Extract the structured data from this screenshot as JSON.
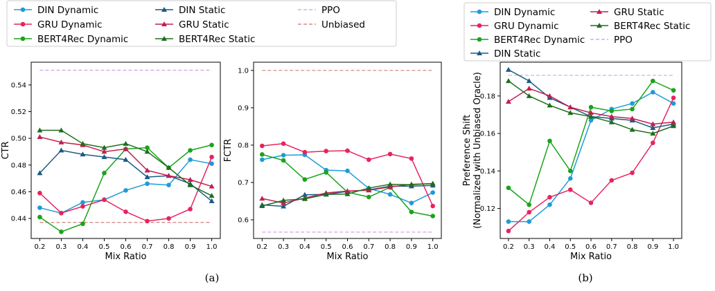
{
  "colors": {
    "din": "#1f9bd7",
    "gru": "#e6245d",
    "bert": "#1aa31a",
    "din_static": "#1a5a82",
    "gru_static": "#c21e4e",
    "bert_static": "#1c6e1c",
    "ppo": "#c79ae6",
    "unbiased": "#c9706e"
  },
  "legend_a": [
    {
      "label": "DIN Dynamic",
      "key": "din",
      "style": "dyn"
    },
    {
      "label": "GRU Dynamic",
      "key": "gru",
      "style": "dyn"
    },
    {
      "label": "BERT4Rec Dynamic",
      "key": "bert",
      "style": "dyn"
    },
    {
      "label": "DIN Static",
      "key": "din_static",
      "style": "stat"
    },
    {
      "label": "GRU Static",
      "key": "gru_static",
      "style": "stat"
    },
    {
      "label": "BERT4Rec Static",
      "key": "bert_static",
      "style": "stat"
    },
    {
      "label": "PPO",
      "key": "ppo",
      "style": "dash"
    },
    {
      "label": "Unbiased",
      "key": "unbiased",
      "style": "dash"
    }
  ],
  "legend_b": [
    {
      "label": "DIN Dynamic",
      "key": "din",
      "style": "dyn"
    },
    {
      "label": "GRU Dynamic",
      "key": "gru",
      "style": "dyn"
    },
    {
      "label": "BERT4Rec Dynamic",
      "key": "bert",
      "style": "dyn"
    },
    {
      "label": "DIN Static",
      "key": "din_static",
      "style": "stat"
    },
    {
      "label": "GRU Static",
      "key": "gru_static",
      "style": "stat"
    },
    {
      "label": "BERT4Rec Static",
      "key": "bert_static",
      "style": "stat"
    },
    {
      "label": "PPO",
      "key": "ppo",
      "style": "dash"
    }
  ],
  "captions": {
    "a": "(a)",
    "b": "(b)"
  },
  "chart_data": [
    {
      "type": "line",
      "xlabel": "Mix Ratio",
      "ylabel": "CTR",
      "x": [
        0.2,
        0.3,
        0.4,
        0.5,
        0.6,
        0.7,
        0.8,
        0.9,
        1.0
      ],
      "xticks": [
        "0.2",
        "0.3",
        "0.4",
        "0.5",
        "0.6",
        "0.7",
        "0.8",
        "0.9",
        "1.0"
      ],
      "ylim": [
        0.425,
        0.557
      ],
      "yticks": [
        "0.44",
        "0.46",
        "0.48",
        "0.50",
        "0.52",
        "0.54"
      ],
      "yticks_values": [
        0.44,
        0.46,
        0.48,
        0.5,
        0.52,
        0.54
      ],
      "series": [
        {
          "name": "DIN Dynamic",
          "key": "din",
          "style": "dyn",
          "values": [
            0.448,
            0.444,
            0.452,
            0.454,
            0.461,
            0.466,
            0.465,
            0.484,
            0.481
          ]
        },
        {
          "name": "GRU Dynamic",
          "key": "gru",
          "style": "dyn",
          "values": [
            0.459,
            0.444,
            0.449,
            0.454,
            0.445,
            0.438,
            0.44,
            0.447,
            0.486
          ]
        },
        {
          "name": "BERT4Rec Dynamic",
          "key": "bert",
          "style": "dyn",
          "values": [
            0.441,
            0.43,
            0.436,
            0.474,
            0.492,
            0.493,
            0.478,
            0.491,
            0.495
          ]
        },
        {
          "name": "DIN Static",
          "key": "din_static",
          "style": "stat",
          "values": [
            0.474,
            0.491,
            0.488,
            0.486,
            0.484,
            0.471,
            0.472,
            0.466,
            0.453
          ]
        },
        {
          "name": "GRU Static",
          "key": "gru_static",
          "style": "stat",
          "values": [
            0.501,
            0.497,
            0.495,
            0.49,
            0.492,
            0.476,
            0.472,
            0.469,
            0.464
          ]
        },
        {
          "name": "BERT4Rec Static",
          "key": "bert_static",
          "style": "stat",
          "values": [
            0.506,
            0.506,
            0.496,
            0.493,
            0.496,
            0.49,
            0.478,
            0.465,
            0.457
          ]
        },
        {
          "name": "PPO",
          "key": "ppo",
          "style": "dash",
          "values": [
            0.551,
            0.551,
            0.551,
            0.551,
            0.551,
            0.551,
            0.551,
            0.551,
            0.551
          ]
        },
        {
          "name": "Unbiased",
          "key": "unbiased",
          "style": "dash",
          "values": [
            0.437,
            0.437,
            0.437,
            0.437,
            0.437,
            0.437,
            0.437,
            0.437,
            0.437
          ]
        }
      ]
    },
    {
      "type": "line",
      "xlabel": "Mix Ratio",
      "ylabel": "FCTR",
      "x": [
        0.2,
        0.3,
        0.4,
        0.5,
        0.6,
        0.7,
        0.8,
        0.9,
        1.0
      ],
      "xticks": [
        "0.2",
        "0.3",
        "0.4",
        "0.5",
        "0.6",
        "0.7",
        "0.8",
        "0.9",
        "1.0"
      ],
      "ylim": [
        0.55,
        1.022
      ],
      "yticks": [
        "0.6",
        "0.7",
        "0.8",
        "0.9",
        "1.0"
      ],
      "yticks_values": [
        0.6,
        0.7,
        0.8,
        0.9,
        1.0
      ],
      "series": [
        {
          "name": "DIN Dynamic",
          "key": "din",
          "style": "dyn",
          "values": [
            0.761,
            0.773,
            0.774,
            0.733,
            0.731,
            0.684,
            0.668,
            0.645,
            0.673
          ]
        },
        {
          "name": "GRU Dynamic",
          "key": "gru",
          "style": "dyn",
          "values": [
            0.798,
            0.804,
            0.781,
            0.784,
            0.785,
            0.761,
            0.776,
            0.764,
            0.637
          ]
        },
        {
          "name": "BERT4Rec Dynamic",
          "key": "bert",
          "style": "dyn",
          "values": [
            0.775,
            0.759,
            0.708,
            0.727,
            0.674,
            0.661,
            0.687,
            0.621,
            0.61
          ]
        },
        {
          "name": "DIN Static",
          "key": "din_static",
          "style": "stat",
          "values": [
            0.64,
            0.636,
            0.667,
            0.668,
            0.676,
            0.68,
            0.69,
            0.69,
            0.692
          ]
        },
        {
          "name": "GRU Static",
          "key": "gru_static",
          "style": "stat",
          "values": [
            0.657,
            0.645,
            0.658,
            0.672,
            0.677,
            0.679,
            0.688,
            0.695,
            0.697
          ]
        },
        {
          "name": "BERT4Rec Static",
          "key": "bert_static",
          "style": "stat",
          "values": [
            0.637,
            0.652,
            0.656,
            0.668,
            0.669,
            0.685,
            0.695,
            0.694,
            0.697
          ]
        },
        {
          "name": "PPO",
          "key": "ppo",
          "style": "dash",
          "values": [
            0.567,
            0.567,
            0.567,
            0.567,
            0.567,
            0.567,
            0.567,
            0.567,
            0.567
          ]
        },
        {
          "name": "Unbiased",
          "key": "unbiased",
          "style": "dash",
          "values": [
            1.0,
            1.0,
            1.0,
            1.0,
            1.0,
            1.0,
            1.0,
            1.0,
            1.0
          ]
        }
      ]
    },
    {
      "type": "line",
      "xlabel": "Mix Ratio",
      "ylabel": "Preference Shift",
      "ylabel2": "(Normalized with Unbiased Oracle)",
      "x": [
        0.2,
        0.3,
        0.4,
        0.5,
        0.6,
        0.7,
        0.8,
        0.9,
        1.0
      ],
      "xticks": [
        "0.2",
        "0.3",
        "0.4",
        "0.5",
        "0.6",
        "0.7",
        "0.8",
        "0.9",
        "1.0"
      ],
      "ylim": [
        0.104,
        0.198
      ],
      "yticks": [
        "0.12",
        "0.14",
        "0.16",
        "0.18"
      ],
      "yticks_values": [
        0.12,
        0.14,
        0.16,
        0.18
      ],
      "series": [
        {
          "name": "DIN Dynamic",
          "key": "din",
          "style": "dyn",
          "values": [
            0.113,
            0.113,
            0.122,
            0.136,
            0.167,
            0.173,
            0.176,
            0.182,
            0.176
          ]
        },
        {
          "name": "GRU Dynamic",
          "key": "gru",
          "style": "dyn",
          "values": [
            0.108,
            0.118,
            0.126,
            0.13,
            0.123,
            0.135,
            0.139,
            0.155,
            0.179
          ]
        },
        {
          "name": "BERT4Rec Dynamic",
          "key": "bert",
          "style": "dyn",
          "values": [
            0.131,
            0.122,
            0.156,
            0.14,
            0.174,
            0.172,
            0.173,
            0.188,
            0.183
          ]
        },
        {
          "name": "DIN Static",
          "key": "din_static",
          "style": "stat",
          "values": [
            0.194,
            0.188,
            0.179,
            0.174,
            0.169,
            0.168,
            0.167,
            0.163,
            0.165
          ]
        },
        {
          "name": "GRU Static",
          "key": "gru_static",
          "style": "stat",
          "values": [
            0.177,
            0.184,
            0.18,
            0.174,
            0.171,
            0.169,
            0.168,
            0.165,
            0.166
          ]
        },
        {
          "name": "BERT4Rec Static",
          "key": "bert_static",
          "style": "stat",
          "values": [
            0.188,
            0.18,
            0.175,
            0.171,
            0.169,
            0.166,
            0.162,
            0.16,
            0.164
          ]
        },
        {
          "name": "PPO",
          "key": "ppo",
          "style": "dash",
          "values": [
            0.191,
            0.191,
            0.191,
            0.191,
            0.191,
            0.191,
            0.191,
            0.191,
            0.191
          ]
        }
      ]
    }
  ]
}
